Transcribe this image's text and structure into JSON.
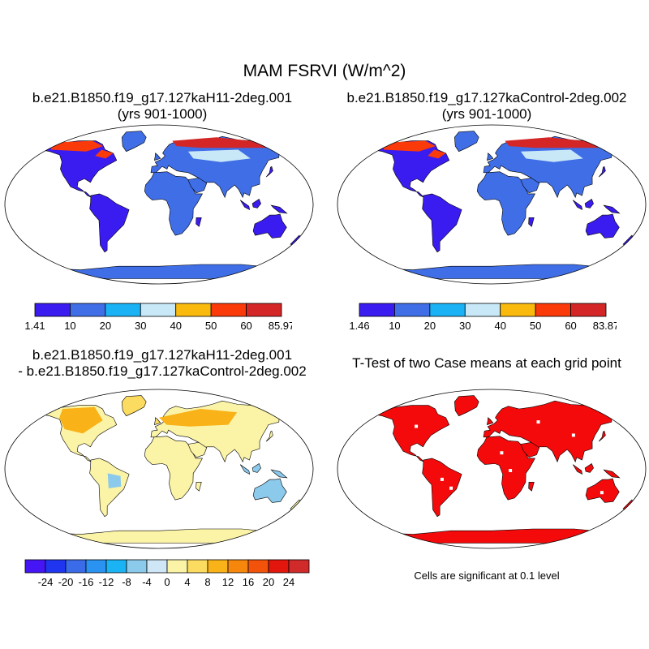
{
  "title": "MAM FSRVI (W/m^2)",
  "panels": [
    {
      "id": "case1",
      "title_lines": [
        "b.e21.B1850.f19_g17.127kaH11-2deg.001",
        "(yrs 901-1000)"
      ],
      "kind": "field",
      "colors_key": "absolute"
    },
    {
      "id": "case2",
      "title_lines": [
        "b.e21.B1850.f19_g17.127kaControl-2deg.002",
        "(yrs 901-1000)"
      ],
      "kind": "field",
      "colors_key": "absolute"
    },
    {
      "id": "diff",
      "title_lines": [
        "b.e21.B1850.f19_g17.127kaH11-2deg.001",
        "- b.e21.B1850.f19_g17.127kaControl-2deg.002"
      ],
      "kind": "difference"
    },
    {
      "id": "ttest",
      "title_lines": [
        "T-Test of two Case means at each grid point"
      ],
      "kind": "significance"
    }
  ],
  "colorbars": [
    {
      "id": "cb1",
      "labels": [
        "1.41",
        "10",
        "20",
        "30",
        "40",
        "50",
        "60",
        "85.97"
      ],
      "colors": [
        "#3a1cf0",
        "#3f6ee6",
        "#1ab2f4",
        "#c8e8f8",
        "#f9b90d",
        "#fb3a0a",
        "#d42626"
      ]
    },
    {
      "id": "cb2",
      "labels": [
        "1.46",
        "10",
        "20",
        "30",
        "40",
        "50",
        "60",
        "83.87"
      ],
      "colors": [
        "#3a1cf0",
        "#3f6ee6",
        "#1ab2f4",
        "#c8e8f8",
        "#f9b90d",
        "#fb3a0a",
        "#d42626"
      ]
    },
    {
      "id": "cb3",
      "labels": [
        "-24",
        "-20",
        "-16",
        "-12",
        "-8",
        "-4",
        "0",
        "4",
        "8",
        "12",
        "16",
        "20",
        "24"
      ],
      "colors": [
        "#4515f5",
        "#2035f0",
        "#3a6be8",
        "#2a92f0",
        "#1ab4f4",
        "#8ccaec",
        "#cfe6f7",
        "#fbf3a6",
        "#fbdc60",
        "#f9b217",
        "#f7860c",
        "#f2520a",
        "#e2160c",
        "#d02a2a"
      ]
    }
  ],
  "colors": {
    "background": "#ffffff",
    "significance": "#f40a0a",
    "ocean": "#ffffff",
    "outline": "#000000"
  },
  "significance_note": "Cells are significant at 0.1 level"
}
